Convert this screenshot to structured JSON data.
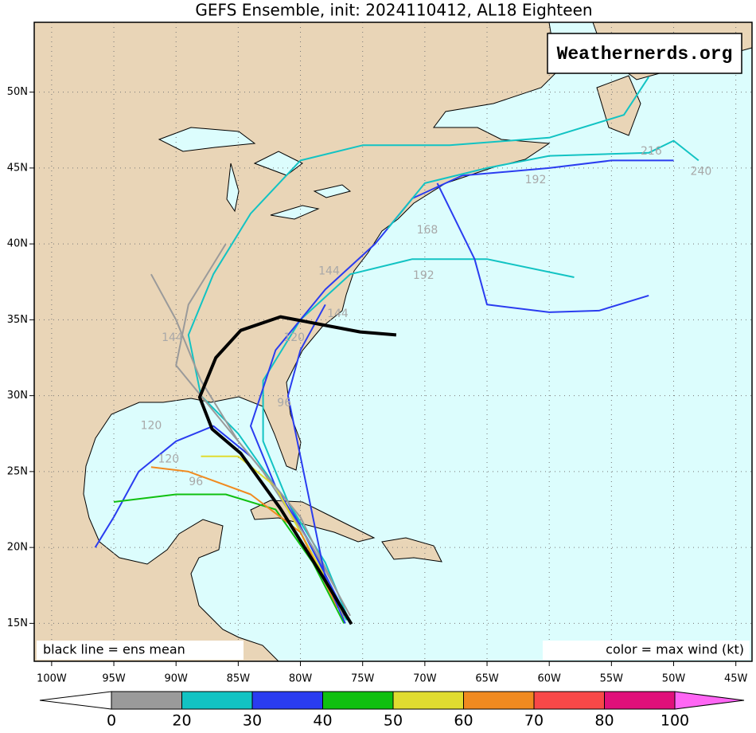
{
  "title": "GEFS Ensemble, init: 2024110412, AL18 Eighteen",
  "watermark": "Weathernerds.org",
  "map": {
    "xlim": [
      -101.4,
      -43.7
    ],
    "ylim": [
      12.5,
      54.6
    ],
    "grid": true,
    "xticks": [
      {
        "value": -100,
        "label": "100W"
      },
      {
        "value": -95,
        "label": "95W"
      },
      {
        "value": -90,
        "label": "90W"
      },
      {
        "value": -85,
        "label": "85W"
      },
      {
        "value": -80,
        "label": "80W"
      },
      {
        "value": -75,
        "label": "75W"
      },
      {
        "value": -70,
        "label": "70W"
      },
      {
        "value": -65,
        "label": "65W"
      },
      {
        "value": -60,
        "label": "60W"
      },
      {
        "value": -55,
        "label": "55W"
      },
      {
        "value": -50,
        "label": "50W"
      },
      {
        "value": -45,
        "label": "45W"
      }
    ],
    "yticks": [
      {
        "value": 15,
        "label": "15N"
      },
      {
        "value": 20,
        "label": "20N"
      },
      {
        "value": 25,
        "label": "25N"
      },
      {
        "value": 30,
        "label": "30N"
      },
      {
        "value": 35,
        "label": "35N"
      },
      {
        "value": 40,
        "label": "40N"
      },
      {
        "value": 45,
        "label": "45N"
      },
      {
        "value": 50,
        "label": "50N"
      }
    ],
    "land_color": "#e9d5b7",
    "sea_color": "#dcfdfd"
  },
  "notes": {
    "left": "black line = ens mean",
    "right": "color = max wind (kt)"
  },
  "colorbar": {
    "levels": [
      "0",
      "20",
      "30",
      "40",
      "50",
      "60",
      "70",
      "80",
      "100"
    ],
    "colors": [
      "#9a9a9a",
      "#12c3c3",
      "#2a3cf0",
      "#10c010",
      "#e0dc30",
      "#f08a20",
      "#f84848",
      "#e0107a"
    ],
    "under_color": "#ffffff",
    "over_color": "#ff66f4"
  },
  "mean_track": {
    "color": "#000000",
    "lon": [
      -75.9,
      -78.4,
      -81.6,
      -84.8,
      -87.1,
      -88.1,
      -86.8,
      -84.8,
      -81.6,
      -78.4,
      -75.2,
      -72.3
    ],
    "lat": [
      14.95,
      18.35,
      22.55,
      26.2,
      27.8,
      29.9,
      32.5,
      34.3,
      35.2,
      34.7,
      34.2,
      34.0
    ]
  },
  "members": [
    {
      "color": "#2a3cf0",
      "lon": [
        -76,
        -78.5,
        -81,
        -84,
        -87,
        -90,
        -93,
        -95,
        -96.5
      ],
      "lat": [
        15,
        19,
        23,
        26,
        28,
        27,
        25,
        22,
        20
      ]
    },
    {
      "color": "#12c3c3",
      "lon": [
        -76.3,
        -79,
        -82,
        -85,
        -88,
        -89,
        -87,
        -84,
        -80,
        -75,
        -68,
        -60,
        -54,
        -52
      ],
      "lat": [
        15.2,
        19.5,
        24,
        27.5,
        30,
        34,
        38,
        42,
        45.5,
        46.5,
        46.5,
        47,
        48.5,
        51
      ]
    },
    {
      "color": "#10c010",
      "lon": [
        -76.5,
        -79,
        -82,
        -86,
        -90,
        -95
      ],
      "lat": [
        15,
        19,
        22.5,
        23.5,
        23.5,
        23
      ]
    },
    {
      "color": "#12c3c3",
      "lon": [
        -76,
        -78,
        -81,
        -83,
        -83,
        -80,
        -76,
        -71,
        -65,
        -58
      ],
      "lat": [
        15,
        19,
        23,
        27,
        31,
        35,
        38,
        39,
        39,
        37.8
      ]
    },
    {
      "color": "#2a3cf0",
      "lon": [
        -76.5,
        -79,
        -82,
        -84,
        -82,
        -78,
        -74,
        -71,
        -67,
        -60,
        -55,
        -50
      ],
      "lat": [
        15.5,
        20,
        24,
        28,
        33,
        37,
        40,
        43,
        44.5,
        45,
        45.5,
        45.5
      ]
    },
    {
      "color": "#9a9a9a",
      "lon": [
        -76,
        -79,
        -83,
        -87,
        -90,
        -89,
        -86
      ],
      "lat": [
        15.5,
        20,
        25,
        29,
        32,
        36,
        40
      ]
    },
    {
      "color": "#12c3c3",
      "lon": [
        -73,
        -70,
        -65,
        -60,
        -52,
        -50,
        -48
      ],
      "lat": [
        41,
        44,
        45,
        45.8,
        46,
        46.8,
        45.5
      ]
    },
    {
      "color": "#2a3cf0",
      "lon": [
        -69,
        -66,
        -65,
        -60,
        -56,
        -52
      ],
      "lat": [
        44,
        39,
        36,
        35.5,
        35.6,
        36.6
      ]
    },
    {
      "color": "#e0dc30",
      "lon": [
        -76.5,
        -78,
        -80,
        -82,
        -85,
        -88
      ],
      "lat": [
        15.3,
        18,
        21,
        24,
        26,
        26
      ]
    },
    {
      "color": "#f08a20",
      "lon": [
        -77,
        -80,
        -84,
        -89,
        -92
      ],
      "lat": [
        16,
        21,
        23.5,
        25,
        25.3
      ]
    },
    {
      "color": "#9a9a9a",
      "lon": [
        -77,
        -80,
        -85,
        -88,
        -90,
        -92
      ],
      "lat": [
        17,
        22,
        27,
        31,
        35,
        38
      ]
    },
    {
      "color": "#2a3cf0",
      "lon": [
        -76.4,
        -78,
        -79,
        -80,
        -81,
        -80,
        -78
      ],
      "lat": [
        15,
        18,
        22,
        26,
        30,
        33,
        36
      ]
    }
  ],
  "hour_labels": [
    {
      "text": "240",
      "lon": -47.8,
      "lat": 44.75
    },
    {
      "text": "216",
      "lon": -51.8,
      "lat": 46.1
    },
    {
      "text": "192",
      "lon": -61.1,
      "lat": 44.2
    },
    {
      "text": "192",
      "lon": -70.1,
      "lat": 37.9
    },
    {
      "text": "168",
      "lon": -69.8,
      "lat": 40.9
    },
    {
      "text": "144",
      "lon": -77.7,
      "lat": 38.2
    },
    {
      "text": "144",
      "lon": -77.0,
      "lat": 35.4
    },
    {
      "text": "120",
      "lon": -80.5,
      "lat": 33.8
    },
    {
      "text": "96",
      "lon": -81.3,
      "lat": 29.5
    },
    {
      "text": "144",
      "lon": -90.3,
      "lat": 33.8
    },
    {
      "text": "120",
      "lon": -92.0,
      "lat": 28.0
    },
    {
      "text": "120",
      "lon": -90.6,
      "lat": 25.8
    },
    {
      "text": "96",
      "lon": -88.4,
      "lat": 24.3
    }
  ]
}
